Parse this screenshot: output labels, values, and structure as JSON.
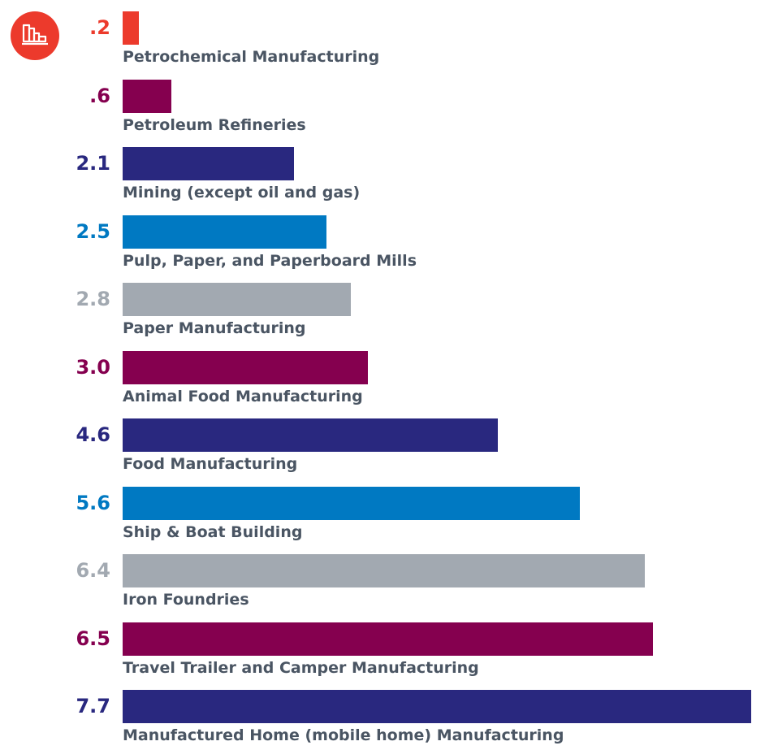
{
  "logo": {
    "icon": "industry-icon",
    "color": "#ec3a2c"
  },
  "chart_data": {
    "type": "bar",
    "orientation": "horizontal",
    "categories": [
      "Petrochemical Manufacturing",
      "Petroleum Refineries",
      "Mining (except oil and gas)",
      "Pulp, Paper, and Paperboard Mills",
      "Paper Manufacturing",
      "Animal Food Manufacturing",
      "Food Manufacturing",
      "Ship & Boat Building",
      "Iron Foundries",
      "Travel Trailer and Camper Manufacturing",
      "Manufactured Home (mobile home) Manufacturing"
    ],
    "value_labels": [
      ".2",
      ".6",
      "2.1",
      "2.5",
      "2.8",
      "3.0",
      "4.6",
      "5.6",
      "6.4",
      "6.5",
      "7.7"
    ],
    "values": [
      0.2,
      0.6,
      2.1,
      2.5,
      2.8,
      3.0,
      4.6,
      5.6,
      6.4,
      6.5,
      7.7
    ],
    "colors": [
      "#ec3a2c",
      "#85004f",
      "#29287f",
      "#0079c2",
      "#a2a9b1",
      "#85004f",
      "#29287f",
      "#0079c2",
      "#a2a9b1",
      "#85004f",
      "#29287f"
    ],
    "label_color": "#4a5563",
    "xlim": [
      0,
      7.7
    ],
    "grid": false,
    "legend": "none"
  }
}
